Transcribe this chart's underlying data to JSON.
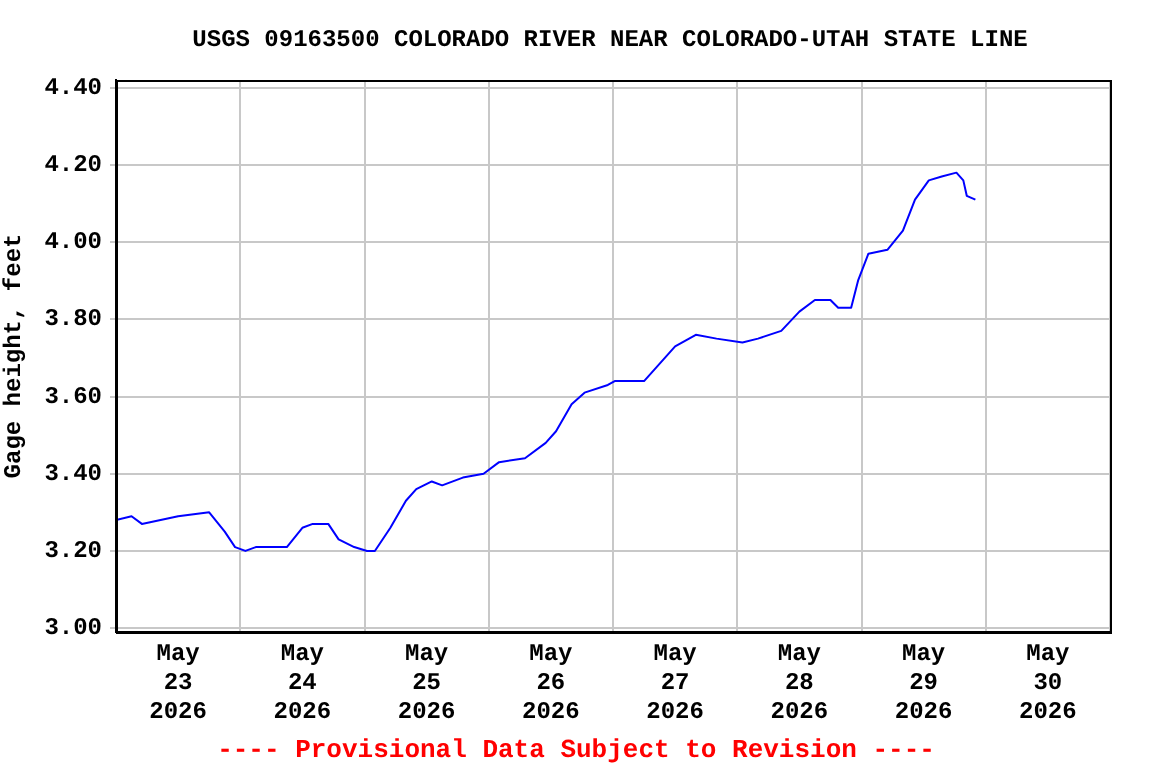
{
  "chart_data": {
    "type": "line",
    "title": "USGS 09163500 COLORADO RIVER NEAR COLORADO-UTAH STATE LINE",
    "ylabel": "Gage height, feet",
    "annotations": [
      "---- Provisional Data Subject to Revision ----"
    ],
    "x": [
      "2026-05-23T00:00",
      "2026-05-23T03:00",
      "2026-05-23T05:00",
      "2026-05-23T12:00",
      "2026-05-23T18:00",
      "2026-05-23T21:00",
      "2026-05-23T23:00",
      "2026-05-24T01:00",
      "2026-05-24T03:00",
      "2026-05-24T09:00",
      "2026-05-24T12:00",
      "2026-05-24T14:00",
      "2026-05-24T17:00",
      "2026-05-24T19:00",
      "2026-05-24T22:00",
      "2026-05-25T00:30",
      "2026-05-25T02:00",
      "2026-05-25T05:00",
      "2026-05-25T08:00",
      "2026-05-25T10:00",
      "2026-05-25T13:00",
      "2026-05-25T15:00",
      "2026-05-25T19:00",
      "2026-05-25T23:00",
      "2026-05-26T02:00",
      "2026-05-26T07:00",
      "2026-05-26T11:00",
      "2026-05-26T13:00",
      "2026-05-26T16:00",
      "2026-05-26T18:30",
      "2026-05-26T23:00",
      "2026-05-27T00:20",
      "2026-05-27T06:00",
      "2026-05-27T12:00",
      "2026-05-27T16:00",
      "2026-05-27T20:00",
      "2026-05-28T01:00",
      "2026-05-28T04:00",
      "2026-05-28T08:30",
      "2026-05-28T12:00",
      "2026-05-28T15:00",
      "2026-05-28T18:00",
      "2026-05-28T19:30",
      "2026-05-28T22:00",
      "2026-05-28T23:20",
      "2026-05-29T01:20",
      "2026-05-29T05:00",
      "2026-05-29T08:00",
      "2026-05-29T10:20",
      "2026-05-29T13:00",
      "2026-05-29T15:30",
      "2026-05-29T18:20",
      "2026-05-29T19:40",
      "2026-05-29T20:20",
      "2026-05-29T22:00"
    ],
    "series": [
      {
        "color": "#0000ff",
        "values": [
          3.28,
          3.29,
          3.27,
          3.29,
          3.3,
          3.25,
          3.21,
          3.2,
          3.21,
          3.21,
          3.26,
          3.27,
          3.27,
          3.23,
          3.21,
          3.2,
          3.2,
          3.26,
          3.33,
          3.36,
          3.38,
          3.37,
          3.39,
          3.4,
          3.43,
          3.44,
          3.48,
          3.51,
          3.58,
          3.61,
          3.63,
          3.64,
          3.64,
          3.73,
          3.76,
          3.75,
          3.74,
          3.75,
          3.77,
          3.82,
          3.85,
          3.85,
          3.83,
          3.83,
          3.9,
          3.97,
          3.98,
          4.03,
          4.11,
          4.16,
          4.17,
          4.18,
          4.16,
          4.12,
          4.11
        ]
      }
    ],
    "xlim": [
      "2026-05-23T00:00",
      "2026-05-31T00:00"
    ],
    "xticks": [
      {
        "value": "2026-05-23T00:00",
        "label": null
      },
      {
        "value": "2026-05-23T12:00",
        "label": "May 23 2026"
      },
      {
        "value": "2026-05-24T00:00",
        "label": null
      },
      {
        "value": "2026-05-24T12:00",
        "label": "May 24 2026"
      },
      {
        "value": "2026-05-25T00:00",
        "label": null
      },
      {
        "value": "2026-05-25T12:00",
        "label": "May 25 2026"
      },
      {
        "value": "2026-05-26T00:00",
        "label": null
      },
      {
        "value": "2026-05-26T12:00",
        "label": "May 26 2026"
      },
      {
        "value": "2026-05-27T00:00",
        "label": null
      },
      {
        "value": "2026-05-27T12:00",
        "label": "May 27 2026"
      },
      {
        "value": "2026-05-28T00:00",
        "label": null
      },
      {
        "value": "2026-05-28T12:00",
        "label": "May 28 2026"
      },
      {
        "value": "2026-05-29T00:00",
        "label": null
      },
      {
        "value": "2026-05-29T12:00",
        "label": "May 29 2026"
      },
      {
        "value": "2026-05-30T00:00",
        "label": null
      },
      {
        "value": "2026-05-30T12:00",
        "label": "May 30 2026"
      },
      {
        "value": "2026-05-31T00:00",
        "label": null
      }
    ],
    "ylim": [
      2.99,
      4.42
    ],
    "yticks": [
      {
        "value": 3.0,
        "label": "3.00"
      },
      {
        "value": 3.2,
        "label": "3.20"
      },
      {
        "value": 3.4,
        "label": "3.40"
      },
      {
        "value": 3.6,
        "label": "3.60"
      },
      {
        "value": 3.8,
        "label": "3.80"
      },
      {
        "value": 4.0,
        "label": "4.00"
      },
      {
        "value": 4.2,
        "label": "4.20"
      },
      {
        "value": 4.4,
        "label": "4.40"
      }
    ],
    "grid": true,
    "legend": false,
    "marker": "none",
    "line_style": "solid"
  }
}
